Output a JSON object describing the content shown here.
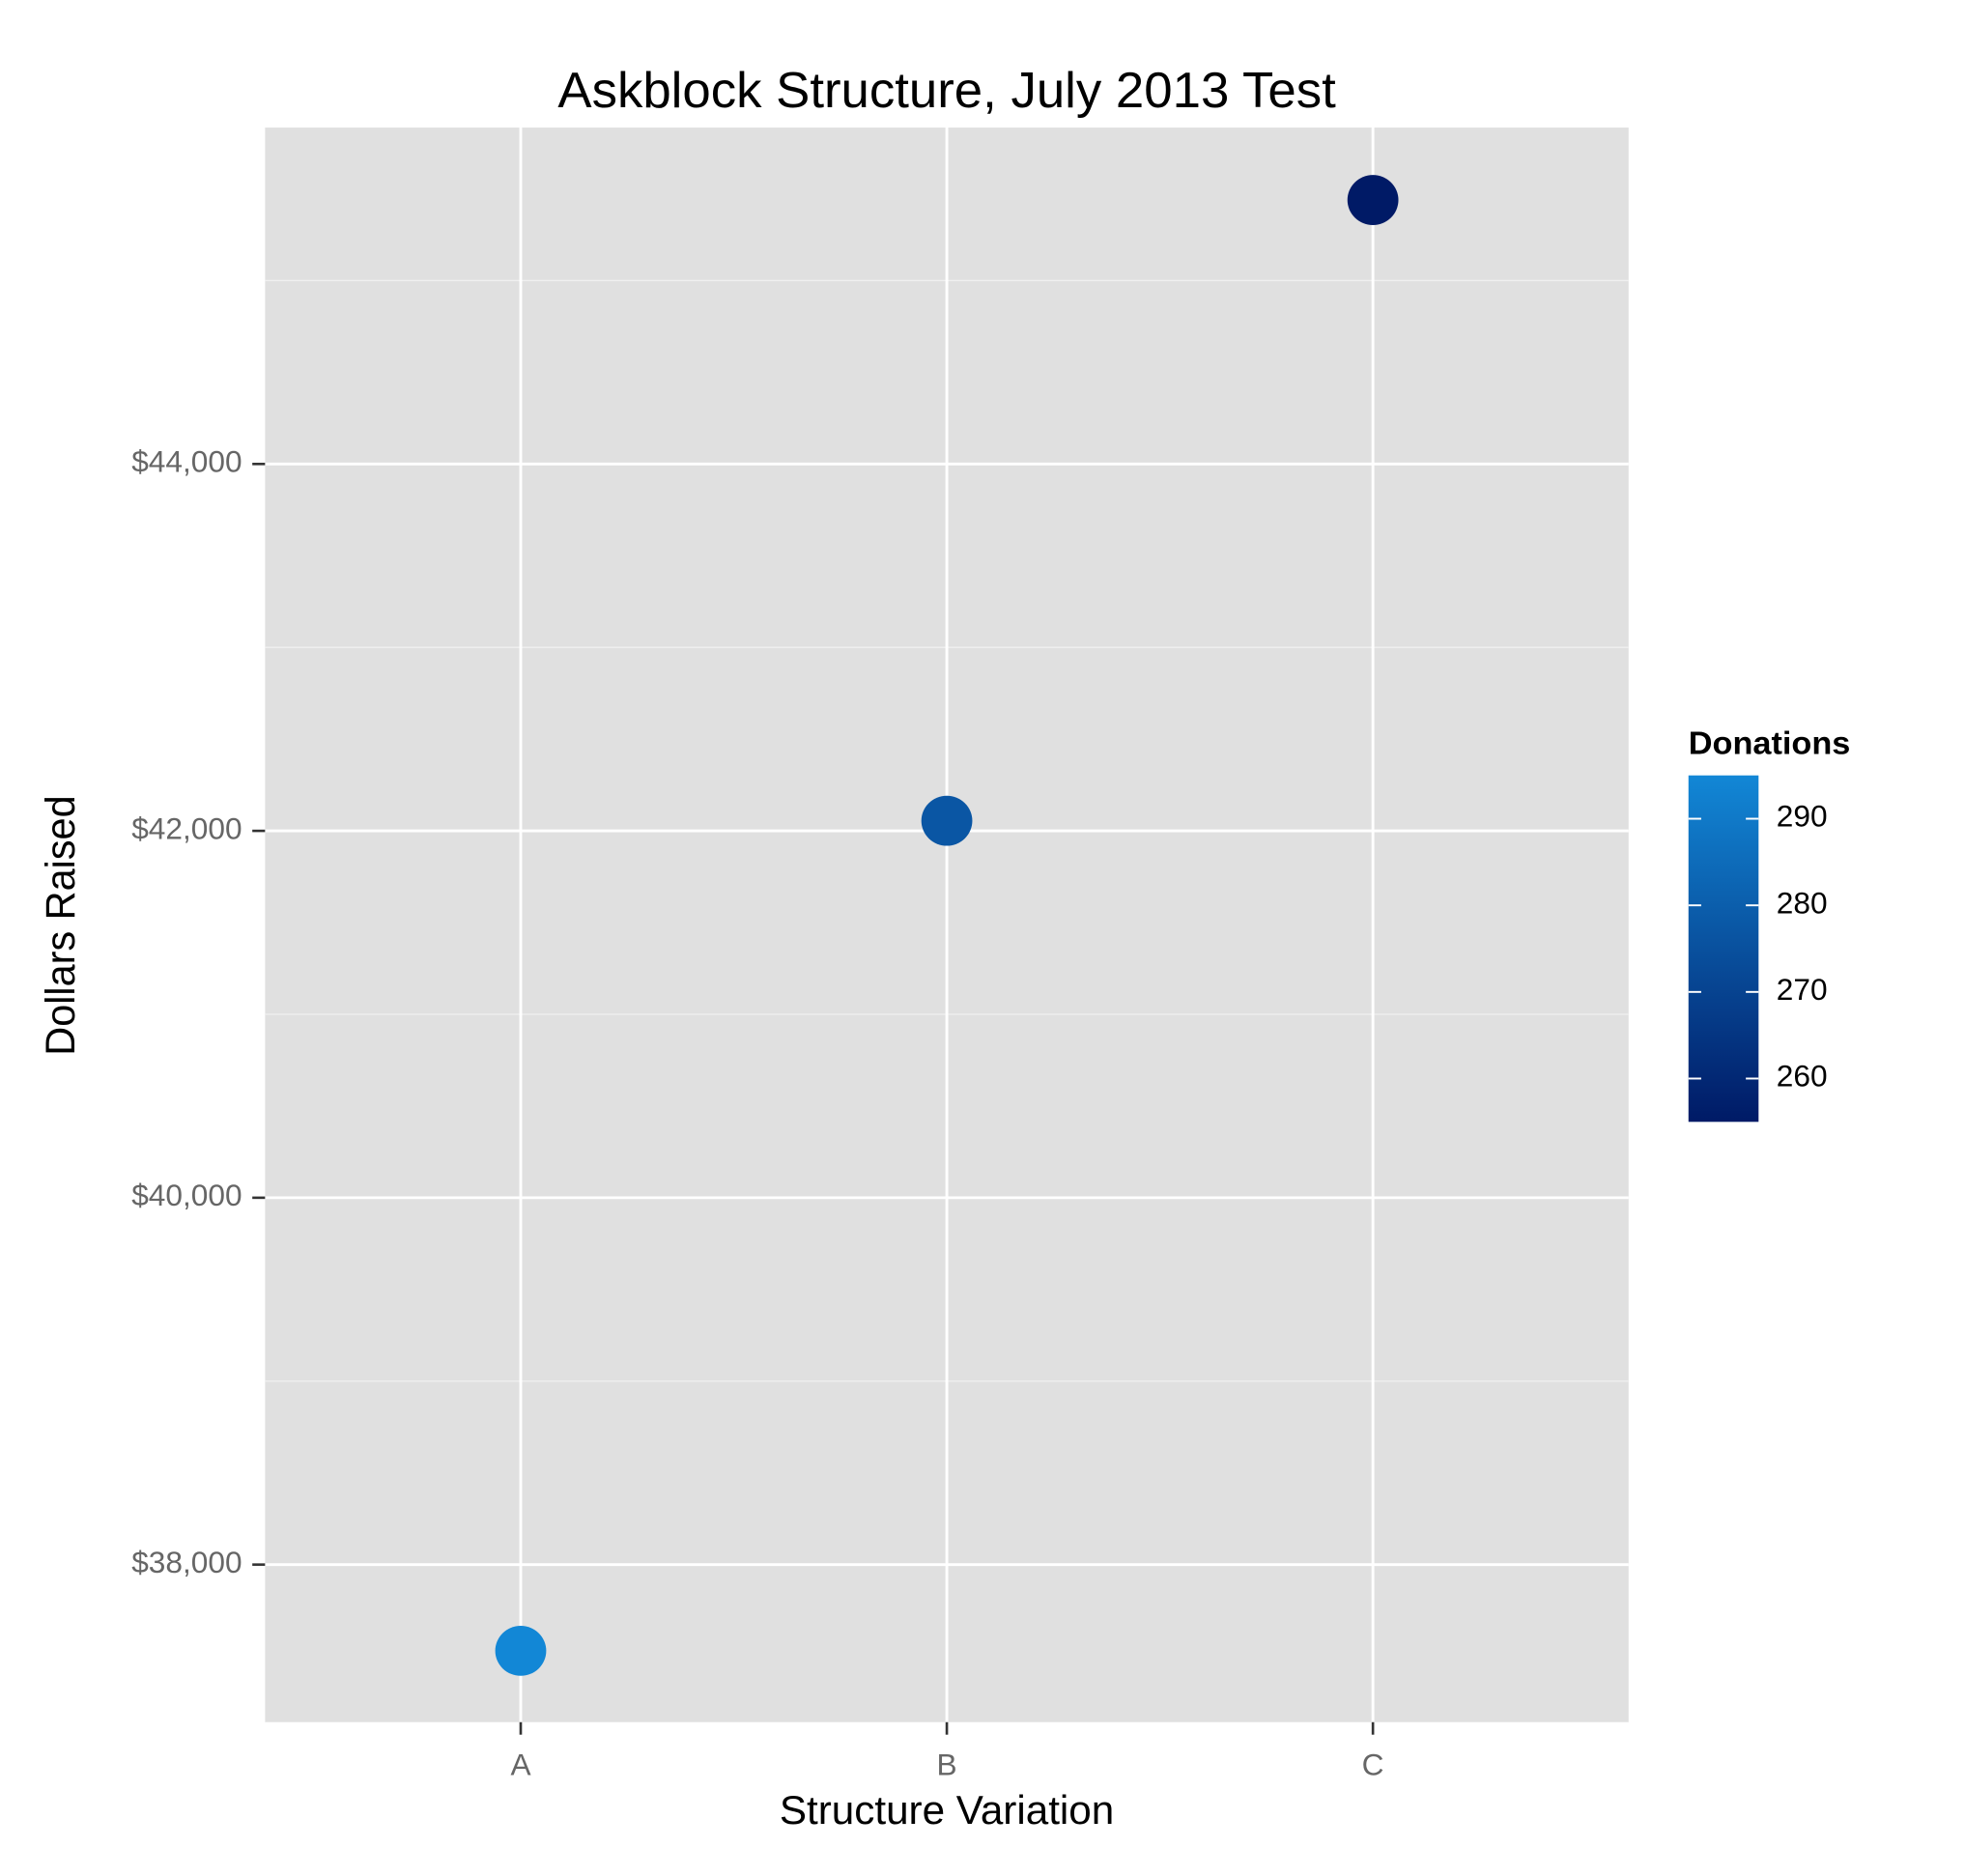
{
  "chart_data": {
    "type": "scatter",
    "title": "Askblock Structure, July 2013 Test",
    "x_label": "Structure Variation",
    "y_label": "Dollars Raised",
    "categories": [
      "A",
      "B",
      "C"
    ],
    "values": [
      37530,
      42055,
      45439
    ],
    "donations": [
      295,
      277,
      255
    ],
    "ylim": [
      37141,
      45834
    ],
    "yticks": [
      {
        "value": 38000,
        "label": "$38,000"
      },
      {
        "value": 40000,
        "label": "$40,000"
      },
      {
        "value": 42000,
        "label": "$42,000"
      },
      {
        "value": 44000,
        "label": "$44,000"
      }
    ],
    "grid": true,
    "minor_grid": true,
    "legend_position": "right",
    "color_scale": {
      "name": "Donations",
      "low": "#001a66",
      "high": "#1287d6",
      "lim": [
        255,
        295
      ],
      "ticks": [
        260,
        270,
        280,
        290
      ]
    }
  }
}
